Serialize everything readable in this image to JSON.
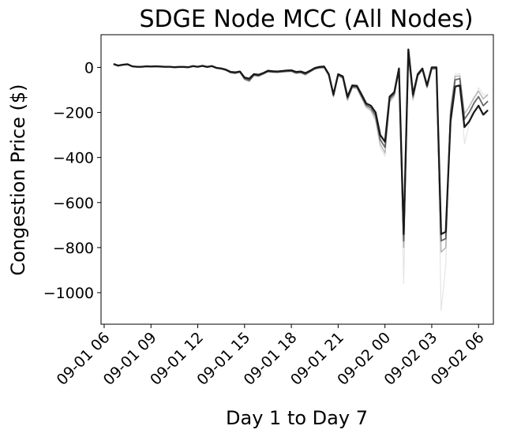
{
  "chart_data": {
    "type": "line",
    "title": "SDGE Node MCC (All Nodes)",
    "xlabel": "Day 1 to Day 7",
    "ylabel": "Congestion Price ($)",
    "x_range_hours": [
      5.8,
      30.95
    ],
    "ylim": [
      -1140,
      145
    ],
    "grid": false,
    "legend": "none",
    "x_ticks": [
      {
        "hour": 6,
        "label": "09-01 06"
      },
      {
        "hour": 9,
        "label": "09-01 09"
      },
      {
        "hour": 12,
        "label": "09-01 12"
      },
      {
        "hour": 15,
        "label": "09-01 15"
      },
      {
        "hour": 18,
        "label": "09-01 18"
      },
      {
        "hour": 21,
        "label": "09-01 21"
      },
      {
        "hour": 24,
        "label": "09-02 00"
      },
      {
        "hour": 27,
        "label": "09-02 03"
      },
      {
        "hour": 30,
        "label": "09-02 06"
      }
    ],
    "y_ticks": [
      0,
      -200,
      -400,
      -600,
      -800,
      -1000
    ],
    "colors": {
      "main": "#1a1a1a",
      "secondary": "#555555",
      "faint": "#999999",
      "faintest": "#cccccc"
    },
    "x": [
      6.6,
      6.9,
      7.2,
      7.5,
      7.8,
      8.1,
      8.4,
      8.7,
      9.0,
      9.3,
      9.6,
      9.9,
      10.2,
      10.5,
      10.8,
      11.1,
      11.4,
      11.7,
      12.0,
      12.3,
      12.6,
      12.9,
      13.2,
      13.5,
      13.8,
      14.1,
      14.4,
      14.7,
      15.0,
      15.3,
      15.6,
      15.9,
      16.2,
      16.5,
      16.8,
      17.1,
      17.4,
      17.7,
      18.0,
      18.3,
      18.6,
      18.9,
      19.2,
      19.5,
      19.8,
      20.1,
      20.4,
      20.7,
      21.0,
      21.3,
      21.6,
      21.9,
      22.2,
      22.5,
      22.8,
      23.1,
      23.4,
      23.7,
      24.0,
      24.3,
      24.6,
      24.9,
      25.2,
      25.5,
      25.8,
      26.1,
      26.4,
      26.7,
      27.0,
      27.3,
      27.6,
      27.9,
      28.2,
      28.5,
      28.8,
      29.1,
      29.4,
      29.7,
      30.0,
      30.3,
      30.6
    ],
    "series": [
      {
        "values": [
          15,
          8,
          12,
          14,
          5,
          3,
          3,
          5,
          4,
          5,
          4,
          3,
          3,
          1,
          2,
          2,
          1,
          6,
          3,
          7,
          2,
          6,
          -2,
          -5,
          -10,
          -20,
          -22,
          -18,
          -45,
          -50,
          -30,
          -33,
          -25,
          -15,
          -17,
          -18,
          -16,
          -14,
          -13,
          -20,
          -18,
          -25,
          -15,
          -3,
          2,
          4,
          -30,
          -120,
          -30,
          -40,
          -130,
          -80,
          -82,
          -120,
          -160,
          -170,
          -200,
          -300,
          -330,
          -130,
          -110,
          -5,
          -740,
          80,
          -120,
          -30,
          -5,
          -80,
          0,
          0,
          -740,
          -730,
          -240,
          -85,
          -80,
          -265,
          -240,
          -200,
          -170,
          -210,
          -190
        ],
        "color": "#1a1a1a",
        "width": 2.3,
        "opacity": 1.0
      },
      {
        "values": [
          14,
          7,
          11,
          13,
          4,
          2,
          2,
          4,
          3,
          4,
          3,
          2,
          2,
          0,
          1,
          1,
          0,
          5,
          2,
          6,
          1,
          5,
          -3,
          -6,
          -12,
          -22,
          -25,
          -20,
          -50,
          -58,
          -34,
          -37,
          -28,
          -18,
          -20,
          -21,
          -19,
          -17,
          -16,
          -24,
          -22,
          -30,
          -18,
          -6,
          -1,
          1,
          -34,
          -125,
          -34,
          -45,
          -138,
          -86,
          -88,
          -128,
          -168,
          -180,
          -215,
          -320,
          -355,
          -140,
          -118,
          -10,
          -770,
          70,
          -130,
          -36,
          -10,
          -86,
          -5,
          -4,
          -770,
          -760,
          -210,
          -55,
          -50,
          -230,
          -200,
          -160,
          -130,
          -170,
          -150
        ],
        "color": "#555555",
        "width": 1.8,
        "opacity": 0.9
      },
      {
        "values": [
          13,
          6,
          10,
          12,
          3,
          1,
          1,
          3,
          2,
          3,
          2,
          1,
          1,
          -1,
          0,
          0,
          -1,
          4,
          1,
          5,
          0,
          4,
          -4,
          -7,
          -13,
          -24,
          -27,
          -22,
          -54,
          -62,
          -36,
          -39,
          -30,
          -20,
          -22,
          -23,
          -21,
          -19,
          -18,
          -27,
          -24,
          -33,
          -20,
          -8,
          -3,
          -2,
          -36,
          -130,
          -36,
          -48,
          -145,
          -90,
          -92,
          -134,
          -175,
          -190,
          -230,
          -340,
          -380,
          -150,
          -125,
          -12,
          -800,
          60,
          -140,
          -38,
          -12,
          -90,
          -8,
          -6,
          -820,
          -800,
          -190,
          -40,
          -38,
          -205,
          -175,
          -135,
          -105,
          -140,
          -120
        ],
        "color": "#999999",
        "width": 1.5,
        "opacity": 0.7
      },
      {
        "values": [
          12,
          5,
          9,
          11,
          2,
          0,
          0,
          2,
          1,
          2,
          1,
          0,
          0,
          -2,
          -1,
          -1,
          -2,
          3,
          0,
          4,
          -1,
          3,
          -5,
          -8,
          -14,
          -25,
          -28,
          -23,
          -56,
          -64,
          -38,
          -41,
          -32,
          -21,
          -23,
          -24,
          -22,
          -20,
          -19,
          -28,
          -25,
          -35,
          -22,
          -9,
          -4,
          -3,
          -38,
          -133,
          -38,
          -50,
          -150,
          -93,
          -95,
          -138,
          -180,
          -195,
          -240,
          -355,
          -395,
          -158,
          -130,
          -14,
          -960,
          50,
          -150,
          -40,
          -14,
          -94,
          -10,
          -8,
          -1080,
          -880,
          -170,
          -30,
          -28,
          -340,
          -250,
          -150,
          -90,
          -120,
          -130
        ],
        "color": "#cccccc",
        "width": 1.2,
        "opacity": 0.5
      }
    ]
  }
}
